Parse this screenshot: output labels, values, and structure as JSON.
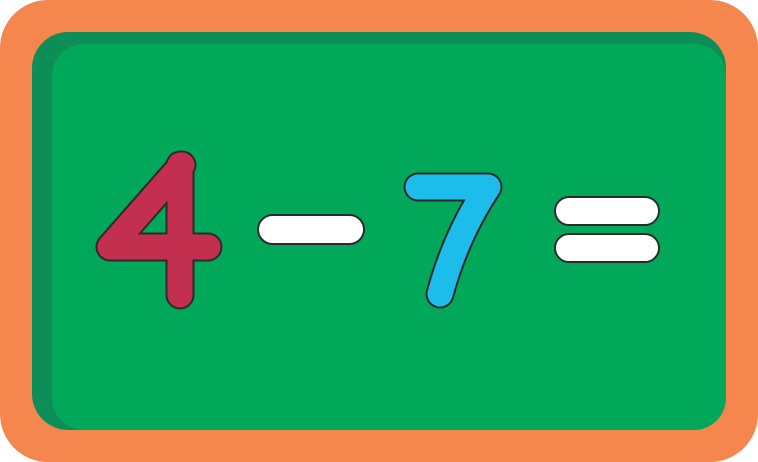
{
  "equation": {
    "first_number": "4",
    "operator": "minus",
    "second_number": "7",
    "equals": "equals",
    "answer": ""
  },
  "colors": {
    "frame": "#F5874E",
    "board_shadow": "#0E8E57",
    "board": "#02A85A",
    "first_number": "#C3304F",
    "second_number": "#1DBDEB",
    "symbols": "#FFFFFF",
    "outline": "#2B2B2B"
  },
  "icons": {
    "minus": "minus-sign-icon",
    "equals": "equals-sign-icon"
  }
}
